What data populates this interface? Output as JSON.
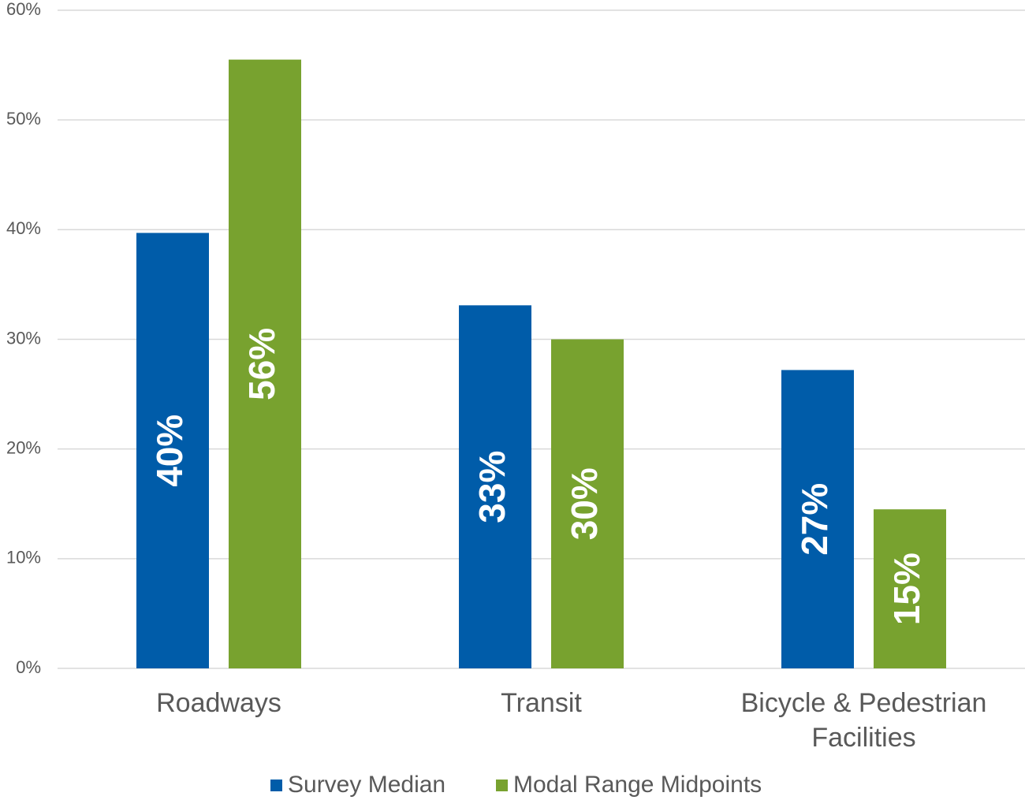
{
  "chart_data": {
    "type": "bar",
    "categories": [
      "Roadways",
      "Transit",
      "Bicycle & Pedestrian Facilities"
    ],
    "series": [
      {
        "name": "Survey Median",
        "color": "#005ca9",
        "values": [
          39.7,
          33.1,
          27.2
        ],
        "value_labels": [
          "40%",
          "33%",
          "27%"
        ]
      },
      {
        "name": "Modal Range Midpoints",
        "color": "#78a22f",
        "values": [
          55.5,
          30,
          14.5
        ],
        "value_labels": [
          "56%",
          "30%",
          "15%"
        ]
      }
    ],
    "ylim": [
      0,
      60
    ],
    "yticks": [
      {
        "value": 0,
        "label": "0%"
      },
      {
        "value": 10,
        "label": "10%"
      },
      {
        "value": 20,
        "label": "20%"
      },
      {
        "value": 30,
        "label": "30%"
      },
      {
        "value": 40,
        "label": "40%"
      },
      {
        "value": 50,
        "label": "50%"
      },
      {
        "value": 60,
        "label": "60%"
      }
    ],
    "grid": true,
    "legend": "bottom"
  }
}
